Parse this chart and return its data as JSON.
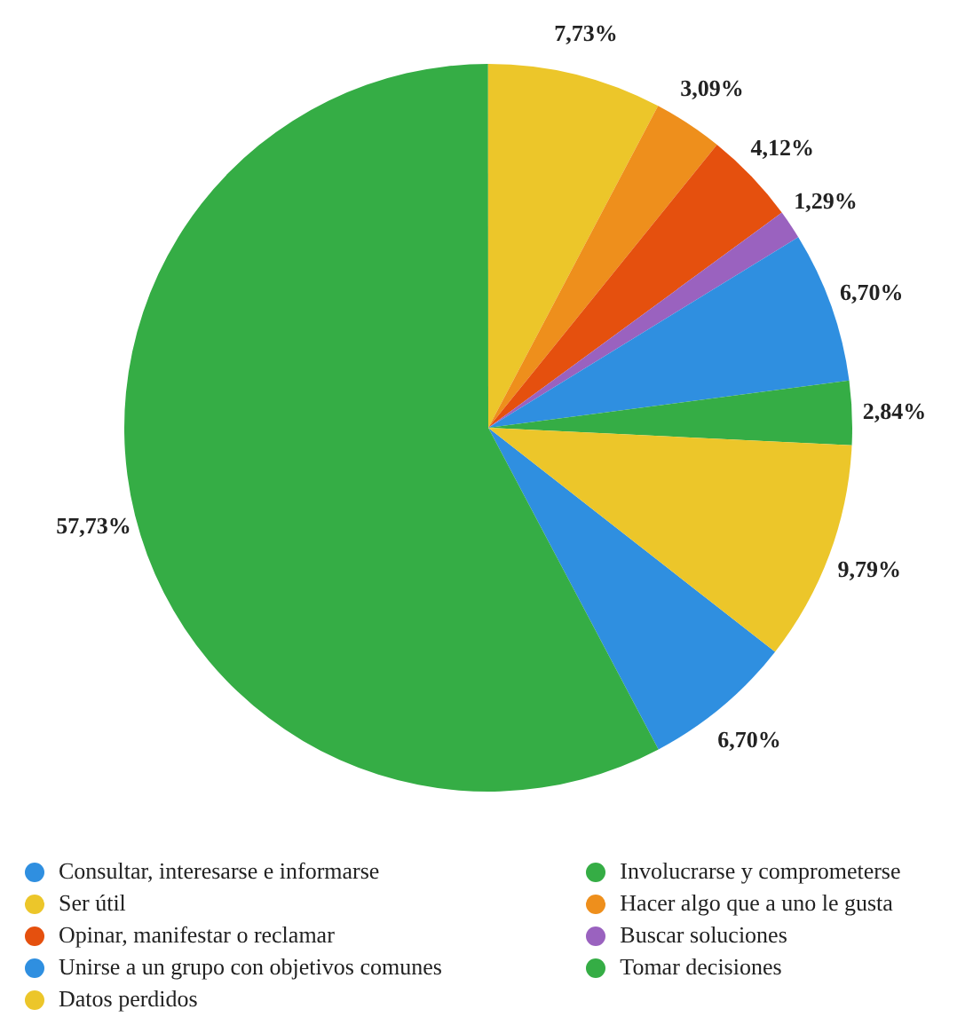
{
  "chart_data": {
    "type": "pie",
    "categories": [
      "Consultar, interesarse e informarse",
      "Involucrarse y comprometerse",
      "Ser útil",
      "Hacer algo que a uno le gusta",
      "Opinar, manifestar o reclamar",
      "Buscar soluciones",
      "Unirse a un grupo con objetivos comunes",
      "Tomar decisiones",
      "Datos perdidos"
    ],
    "values": [
      6.7,
      57.73,
      7.73,
      3.09,
      4.12,
      1.29,
      6.7,
      2.84,
      9.79
    ],
    "colors": [
      "#2f8fe0",
      "#35ad45",
      "#ecc62a",
      "#ee8f1c",
      "#e5500e",
      "#9a62bf",
      "#2f8fe0",
      "#35ad45",
      "#ecc62a"
    ],
    "value_labels": [
      "6,70%",
      "57,73%",
      "7,73%",
      "3,09%",
      "4,12%",
      "1,29%",
      "6,70%",
      "2,84%",
      "9,79%"
    ],
    "legend": "bottom"
  }
}
